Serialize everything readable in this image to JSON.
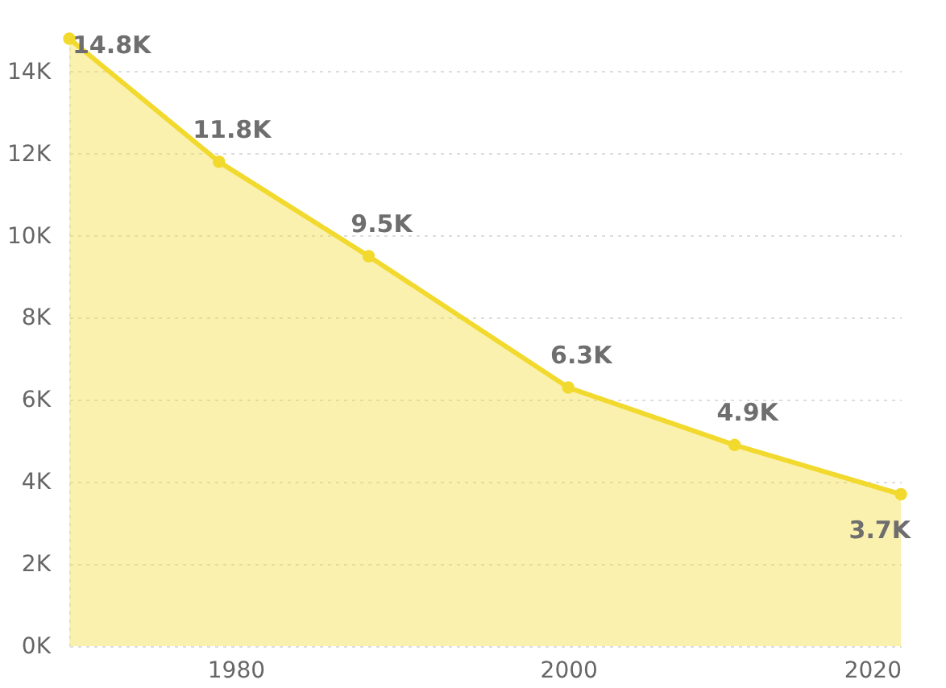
{
  "chart_data": {
    "type": "area",
    "x": [
      1970,
      1979,
      1988,
      2000,
      2010,
      2020
    ],
    "series": [
      {
        "color": "#f2d92e",
        "values": [
          14800,
          11800,
          9500,
          6300,
          4900,
          3700
        ]
      }
    ],
    "value_labels": [
      "14.8K",
      "11.8K",
      "9.5K",
      "6.3K",
      "4.9K",
      "3.7K"
    ],
    "xlim": [
      1970,
      2020
    ],
    "xticks": [
      1980,
      2000,
      2020
    ],
    "ylim": [
      0,
      14800
    ],
    "yticks": [
      {
        "value": 0,
        "label": "0K"
      },
      {
        "value": 2000,
        "label": "2K"
      },
      {
        "value": 4000,
        "label": "4K"
      },
      {
        "value": 6000,
        "label": "6K"
      },
      {
        "value": 8000,
        "label": "8K"
      },
      {
        "value": 10000,
        "label": "10K"
      },
      {
        "value": 12000,
        "label": "12K"
      },
      {
        "value": 14000,
        "label": "14K"
      }
    ],
    "grid": "y",
    "marker": "circle",
    "line_style": "solid"
  }
}
